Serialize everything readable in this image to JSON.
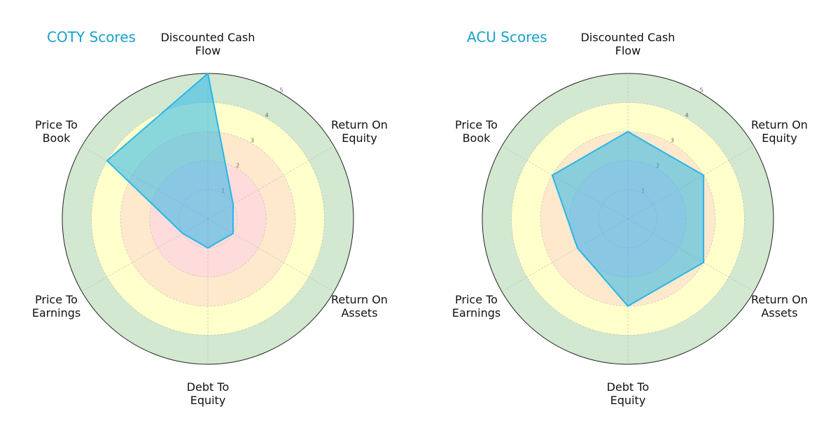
{
  "chart_data": [
    {
      "type": "radar",
      "title": "COTY Scores",
      "categories": [
        "Discounted Cash\nFlow",
        "Return On\nEquity",
        "Return On\nAssets",
        "Debt To\nEquity",
        "Price To\nEarnings",
        "Price To\nBook"
      ],
      "values": [
        5,
        1,
        1,
        1,
        1,
        4
      ],
      "color": "#29b6e8",
      "rlim": [
        0,
        5
      ],
      "rticks": [
        1,
        2,
        3,
        4,
        5
      ],
      "zones": [
        {
          "from": 0,
          "to": 2,
          "color": "#ffdcdc"
        },
        {
          "from": 2,
          "to": 3,
          "color": "#ffe9cc"
        },
        {
          "from": 3,
          "to": 4,
          "color": "#ffffcc"
        },
        {
          "from": 4,
          "to": 5,
          "color": "#d2e8d0"
        }
      ],
      "grid": true
    },
    {
      "type": "radar",
      "title": "ACU Scores",
      "categories": [
        "Discounted Cash\nFlow",
        "Return On\nEquity",
        "Return On\nAssets",
        "Debt To\nEquity",
        "Price To\nEarnings",
        "Price To\nBook"
      ],
      "values": [
        3,
        3,
        3,
        3,
        2,
        3
      ],
      "color": "#29b6e8",
      "rlim": [
        0,
        5
      ],
      "rticks": [
        1,
        2,
        3,
        4,
        5
      ],
      "zones": [
        {
          "from": 0,
          "to": 2,
          "color": "#ffdcdc"
        },
        {
          "from": 2,
          "to": 3,
          "color": "#ffe9cc"
        },
        {
          "from": 3,
          "to": 4,
          "color": "#ffffcc"
        },
        {
          "from": 4,
          "to": 5,
          "color": "#d2e8d0"
        }
      ],
      "grid": true
    }
  ]
}
